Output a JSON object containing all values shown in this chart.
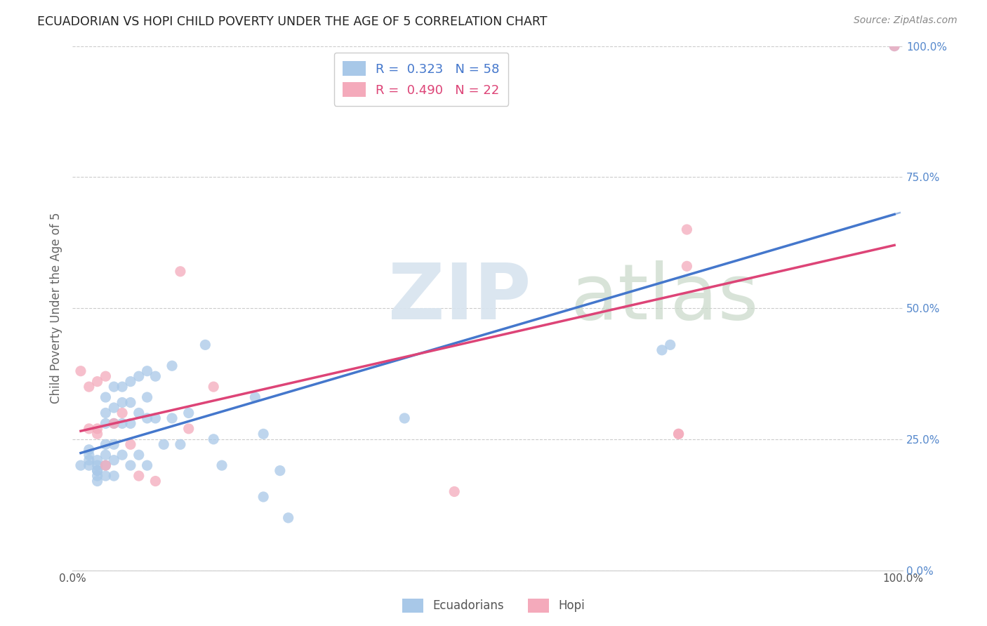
{
  "title": "ECUADORIAN VS HOPI CHILD POVERTY UNDER THE AGE OF 5 CORRELATION CHART",
  "source": "Source: ZipAtlas.com",
  "ylabel": "Child Poverty Under the Age of 5",
  "xlim": [
    0.0,
    1.0
  ],
  "ylim": [
    0.0,
    1.0
  ],
  "xtick_labels": [
    "0.0%",
    "100.0%"
  ],
  "ytick_labels": [
    "100.0%",
    "75.0%",
    "50.0%",
    "25.0%",
    "0.0%"
  ],
  "ytick_positions": [
    1.0,
    0.75,
    0.5,
    0.25,
    0.0
  ],
  "watermark_zip": "ZIP",
  "watermark_atlas": "atlas",
  "ecuadorians_color": "#a8c8e8",
  "hopi_color": "#f4aabb",
  "trendline_ecuador_color": "#4477cc",
  "trendline_hopi_color": "#dd4477",
  "dashed_color": "#88aadd",
  "background_color": "#ffffff",
  "grid_color": "#cccccc",
  "tick_color": "#5588cc",
  "ecuadorians_x": [
    0.01,
    0.02,
    0.02,
    0.02,
    0.02,
    0.03,
    0.03,
    0.03,
    0.03,
    0.03,
    0.03,
    0.04,
    0.04,
    0.04,
    0.04,
    0.04,
    0.04,
    0.04,
    0.05,
    0.05,
    0.05,
    0.05,
    0.05,
    0.05,
    0.06,
    0.06,
    0.06,
    0.06,
    0.07,
    0.07,
    0.07,
    0.07,
    0.08,
    0.08,
    0.08,
    0.09,
    0.09,
    0.09,
    0.09,
    0.1,
    0.1,
    0.11,
    0.12,
    0.12,
    0.13,
    0.14,
    0.16,
    0.17,
    0.18,
    0.22,
    0.23,
    0.23,
    0.25,
    0.26,
    0.4,
    0.71,
    0.72,
    0.99
  ],
  "ecuadorians_y": [
    0.2,
    0.23,
    0.22,
    0.21,
    0.2,
    0.21,
    0.2,
    0.19,
    0.19,
    0.18,
    0.17,
    0.33,
    0.3,
    0.28,
    0.24,
    0.22,
    0.2,
    0.18,
    0.35,
    0.31,
    0.28,
    0.24,
    0.21,
    0.18,
    0.35,
    0.32,
    0.28,
    0.22,
    0.36,
    0.32,
    0.28,
    0.2,
    0.37,
    0.3,
    0.22,
    0.38,
    0.33,
    0.29,
    0.2,
    0.37,
    0.29,
    0.24,
    0.39,
    0.29,
    0.24,
    0.3,
    0.43,
    0.25,
    0.2,
    0.33,
    0.26,
    0.14,
    0.19,
    0.1,
    0.29,
    0.42,
    0.43,
    1.0
  ],
  "hopi_x": [
    0.01,
    0.02,
    0.02,
    0.03,
    0.03,
    0.03,
    0.04,
    0.04,
    0.05,
    0.06,
    0.07,
    0.08,
    0.1,
    0.13,
    0.14,
    0.17,
    0.46,
    0.73,
    0.73,
    0.74,
    0.74,
    0.99
  ],
  "hopi_y": [
    0.38,
    0.35,
    0.27,
    0.36,
    0.27,
    0.26,
    0.37,
    0.2,
    0.28,
    0.3,
    0.24,
    0.18,
    0.17,
    0.57,
    0.27,
    0.35,
    0.15,
    0.26,
    0.26,
    0.65,
    0.58,
    1.0
  ]
}
